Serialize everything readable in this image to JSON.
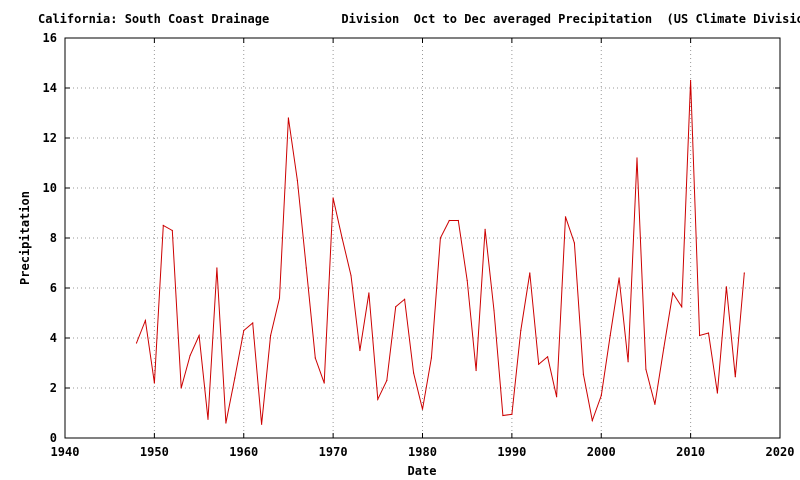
{
  "chart_data": {
    "type": "line",
    "title": "California: South Coast Drainage          Division  Oct to Dec averaged Precipitation  (US Climate Division",
    "xlabel": "Date",
    "ylabel": "Precipitation",
    "xlim": [
      1940,
      2020
    ],
    "ylim": [
      0,
      16
    ],
    "xticks": [
      1940,
      1950,
      1960,
      1970,
      1980,
      1990,
      2000,
      2010,
      2020
    ],
    "yticks": [
      0,
      2,
      4,
      6,
      8,
      10,
      12,
      14,
      16
    ],
    "grid": true,
    "line_color": "#cc0000",
    "x": [
      1948,
      1949,
      1950,
      1951,
      1952,
      1953,
      1954,
      1955,
      1956,
      1957,
      1958,
      1959,
      1960,
      1961,
      1962,
      1963,
      1964,
      1965,
      1966,
      1967,
      1968,
      1969,
      1970,
      1971,
      1972,
      1973,
      1974,
      1975,
      1976,
      1977,
      1978,
      1979,
      1980,
      1981,
      1982,
      1983,
      1984,
      1985,
      1986,
      1987,
      1988,
      1989,
      1990,
      1991,
      1992,
      1993,
      1994,
      1995,
      1996,
      1997,
      1998,
      1999,
      2000,
      2001,
      2002,
      2003,
      2004,
      2005,
      2006,
      2007,
      2008,
      2009,
      2010,
      2011,
      2012,
      2013,
      2014,
      2015,
      2016
    ],
    "y": [
      3.8,
      4.7,
      2.2,
      8.5,
      8.3,
      2.0,
      3.3,
      4.1,
      0.75,
      6.8,
      0.6,
      2.4,
      4.3,
      4.6,
      0.55,
      4.1,
      5.6,
      12.8,
      10.3,
      6.8,
      3.2,
      2.2,
      9.6,
      8.0,
      6.5,
      3.5,
      5.8,
      1.55,
      2.3,
      5.25,
      5.55,
      2.6,
      1.15,
      3.2,
      8.0,
      8.7,
      8.7,
      6.3,
      2.7,
      8.35,
      5.1,
      0.9,
      0.95,
      4.3,
      6.6,
      2.95,
      3.25,
      1.65,
      8.85,
      7.8,
      2.55,
      0.7,
      1.7,
      4.1,
      6.4,
      3.05,
      11.2,
      2.75,
      1.35,
      3.6,
      5.8,
      5.25,
      14.3,
      4.1,
      4.2,
      1.8,
      6.05,
      2.45,
      6.6
    ]
  }
}
